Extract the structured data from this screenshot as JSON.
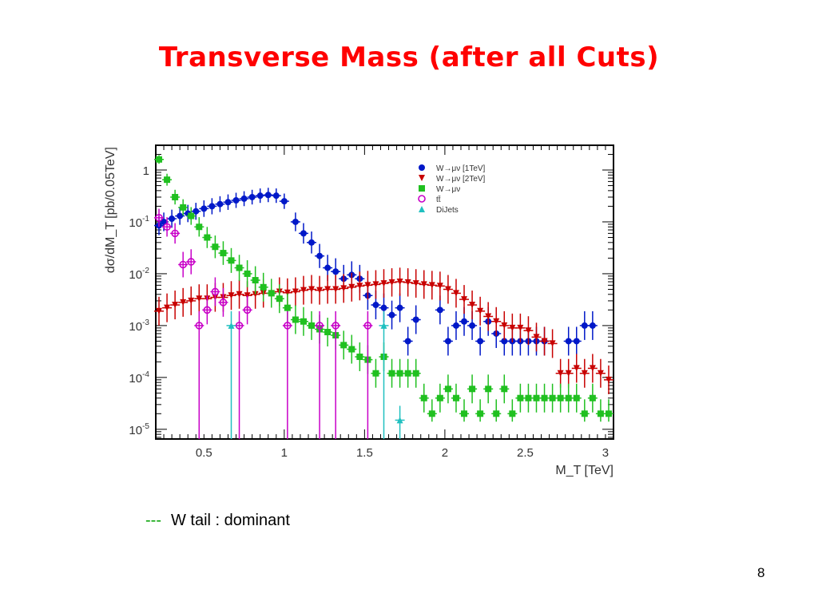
{
  "slide": {
    "title": "Transverse Mass (after all Cuts)",
    "note_dash": "---",
    "note_text": "W tail : dominant",
    "page_number": "8"
  },
  "chart_data": {
    "type": "scatter",
    "xlabel": "M_T [TeV]",
    "ylabel": "dσ/dM_T [pb/0.05TeV]",
    "xlim": [
      0.2,
      3.05
    ],
    "ylim": [
      6.5e-06,
      3
    ],
    "yscale": "log",
    "x_ticks": [
      0.5,
      1,
      1.5,
      2,
      2.5,
      3
    ],
    "x_tick_labels": [
      "0.5",
      "1",
      "1.5",
      "2",
      "2.5",
      "3"
    ],
    "y_ticks": [
      1e-05,
      0.0001,
      0.001,
      0.01,
      0.1,
      1
    ],
    "y_tick_labels": [
      {
        "base": "10",
        "exp": "-5"
      },
      {
        "base": "10",
        "exp": "-4"
      },
      {
        "base": "10",
        "exp": "-3"
      },
      {
        "base": "10",
        "exp": "-2"
      },
      {
        "base": "10",
        "exp": "-1"
      },
      {
        "base": "1",
        "exp": ""
      }
    ],
    "legend_position": "top-right",
    "series": [
      {
        "name": "W→μν [1TeV]",
        "color": "#0018c8",
        "marker": "circle",
        "points": [
          [
            0.22,
            0.085
          ],
          [
            0.25,
            0.1
          ],
          [
            0.3,
            0.115
          ],
          [
            0.35,
            0.13
          ],
          [
            0.4,
            0.145
          ],
          [
            0.45,
            0.16
          ],
          [
            0.5,
            0.18
          ],
          [
            0.55,
            0.2
          ],
          [
            0.6,
            0.22
          ],
          [
            0.65,
            0.24
          ],
          [
            0.7,
            0.26
          ],
          [
            0.75,
            0.28
          ],
          [
            0.8,
            0.3
          ],
          [
            0.85,
            0.32
          ],
          [
            0.9,
            0.33
          ],
          [
            0.95,
            0.32
          ],
          [
            1.0,
            0.25
          ],
          [
            1.07,
            0.1
          ],
          [
            1.12,
            0.06
          ],
          [
            1.17,
            0.04
          ],
          [
            1.22,
            0.022
          ],
          [
            1.27,
            0.013
          ],
          [
            1.32,
            0.011
          ],
          [
            1.37,
            0.008
          ],
          [
            1.42,
            0.0095
          ],
          [
            1.47,
            0.008
          ],
          [
            1.52,
            0.0038
          ],
          [
            1.57,
            0.0025
          ],
          [
            1.62,
            0.0022
          ],
          [
            1.67,
            0.0016
          ],
          [
            1.72,
            0.0022
          ],
          [
            1.77,
            0.0005
          ],
          [
            1.82,
            0.0013
          ],
          [
            1.97,
            0.002
          ],
          [
            2.02,
            0.0005
          ],
          [
            2.07,
            0.001
          ],
          [
            2.12,
            0.0012
          ],
          [
            2.17,
            0.001
          ],
          [
            2.22,
            0.0005
          ],
          [
            2.27,
            0.0012
          ],
          [
            2.32,
            0.0007
          ],
          [
            2.37,
            0.0005
          ],
          [
            2.42,
            0.0005
          ],
          [
            2.47,
            0.0005
          ],
          [
            2.52,
            0.0005
          ],
          [
            2.57,
            0.0005
          ],
          [
            2.62,
            0.0005
          ],
          [
            2.77,
            0.0005
          ],
          [
            2.82,
            0.0005
          ],
          [
            2.87,
            0.001
          ],
          [
            2.92,
            0.001
          ]
        ]
      },
      {
        "name": "W→μν [2TeV]",
        "color": "#c80000",
        "marker": "triangle-down",
        "points": [
          [
            0.22,
            0.0019
          ],
          [
            0.27,
            0.0022
          ],
          [
            0.32,
            0.0025
          ],
          [
            0.37,
            0.0028
          ],
          [
            0.42,
            0.003
          ],
          [
            0.47,
            0.0033
          ],
          [
            0.52,
            0.0033
          ],
          [
            0.57,
            0.0035
          ],
          [
            0.62,
            0.0035
          ],
          [
            0.67,
            0.0038
          ],
          [
            0.72,
            0.004
          ],
          [
            0.77,
            0.0038
          ],
          [
            0.82,
            0.004
          ],
          [
            0.87,
            0.0042
          ],
          [
            0.92,
            0.0042
          ],
          [
            0.97,
            0.0045
          ],
          [
            1.02,
            0.0043
          ],
          [
            1.07,
            0.0045
          ],
          [
            1.12,
            0.0048
          ],
          [
            1.17,
            0.005
          ],
          [
            1.22,
            0.0048
          ],
          [
            1.27,
            0.005
          ],
          [
            1.32,
            0.005
          ],
          [
            1.37,
            0.0052
          ],
          [
            1.42,
            0.0055
          ],
          [
            1.47,
            0.0058
          ],
          [
            1.52,
            0.006
          ],
          [
            1.57,
            0.0062
          ],
          [
            1.62,
            0.0065
          ],
          [
            1.67,
            0.0068
          ],
          [
            1.72,
            0.007
          ],
          [
            1.77,
            0.0068
          ],
          [
            1.82,
            0.0065
          ],
          [
            1.87,
            0.0062
          ],
          [
            1.92,
            0.006
          ],
          [
            1.97,
            0.0058
          ],
          [
            2.02,
            0.005
          ],
          [
            2.07,
            0.0042
          ],
          [
            2.12,
            0.0032
          ],
          [
            2.17,
            0.0025
          ],
          [
            2.22,
            0.0019
          ],
          [
            2.27,
            0.0015
          ],
          [
            2.32,
            0.0012
          ],
          [
            2.37,
            0.001
          ],
          [
            2.42,
            0.0009
          ],
          [
            2.47,
            0.0009
          ],
          [
            2.52,
            0.0008
          ],
          [
            2.57,
            0.0006
          ],
          [
            2.62,
            0.0005
          ],
          [
            2.67,
            0.00045
          ],
          [
            2.72,
            0.00012
          ],
          [
            2.77,
            0.00012
          ],
          [
            2.82,
            0.00015
          ],
          [
            2.87,
            0.00012
          ],
          [
            2.92,
            0.00015
          ],
          [
            2.97,
            0.00012
          ],
          [
            3.02,
            9e-05
          ]
        ]
      },
      {
        "name": "W→μν",
        "color": "#20c020",
        "marker": "square",
        "points": [
          [
            0.22,
            1.6
          ],
          [
            0.27,
            0.65
          ],
          [
            0.32,
            0.3
          ],
          [
            0.37,
            0.19
          ],
          [
            0.42,
            0.13
          ],
          [
            0.47,
            0.08
          ],
          [
            0.52,
            0.05
          ],
          [
            0.57,
            0.033
          ],
          [
            0.62,
            0.025
          ],
          [
            0.67,
            0.018
          ],
          [
            0.72,
            0.013
          ],
          [
            0.77,
            0.01
          ],
          [
            0.82,
            0.0075
          ],
          [
            0.87,
            0.0055
          ],
          [
            0.92,
            0.0042
          ],
          [
            0.97,
            0.0033
          ],
          [
            1.02,
            0.0022
          ],
          [
            1.07,
            0.0013
          ],
          [
            1.12,
            0.0012
          ],
          [
            1.17,
            0.001
          ],
          [
            1.22,
            0.00085
          ],
          [
            1.27,
            0.00075
          ],
          [
            1.32,
            0.00065
          ],
          [
            1.37,
            0.00042
          ],
          [
            1.42,
            0.00035
          ],
          [
            1.47,
            0.00025
          ],
          [
            1.52,
            0.00022
          ],
          [
            1.57,
            0.00012
          ],
          [
            1.62,
            0.00025
          ],
          [
            1.67,
            0.00012
          ],
          [
            1.72,
            0.00012
          ],
          [
            1.77,
            0.00012
          ],
          [
            1.82,
            0.00012
          ],
          [
            1.87,
            4e-05
          ],
          [
            1.92,
            2e-05
          ],
          [
            1.97,
            4e-05
          ],
          [
            2.02,
            6e-05
          ],
          [
            2.07,
            4e-05
          ],
          [
            2.12,
            2e-05
          ],
          [
            2.17,
            6e-05
          ],
          [
            2.22,
            2e-05
          ],
          [
            2.27,
            6e-05
          ],
          [
            2.32,
            2e-05
          ],
          [
            2.37,
            6e-05
          ],
          [
            2.42,
            2e-05
          ],
          [
            2.47,
            4e-05
          ],
          [
            2.52,
            4e-05
          ],
          [
            2.57,
            4e-05
          ],
          [
            2.62,
            4e-05
          ],
          [
            2.67,
            4e-05
          ],
          [
            2.72,
            4e-05
          ],
          [
            2.77,
            4e-05
          ],
          [
            2.82,
            4e-05
          ],
          [
            2.87,
            2e-05
          ],
          [
            2.92,
            4e-05
          ],
          [
            2.97,
            2e-05
          ],
          [
            3.02,
            2e-05
          ]
        ]
      },
      {
        "name": "tt̄",
        "color": "#c800c8",
        "marker": "open-circle",
        "points": [
          [
            0.22,
            0.12
          ],
          [
            0.27,
            0.08
          ],
          [
            0.32,
            0.06
          ],
          [
            0.37,
            0.015
          ],
          [
            0.42,
            0.017
          ],
          [
            0.47,
            0.001
          ],
          [
            0.52,
            0.002
          ],
          [
            0.57,
            0.0045
          ],
          [
            0.62,
            0.0028
          ],
          [
            0.72,
            0.001
          ],
          [
            0.77,
            0.002
          ],
          [
            1.02,
            0.001
          ],
          [
            1.22,
            0.001
          ],
          [
            1.32,
            0.001
          ],
          [
            1.52,
            0.001
          ]
        ]
      },
      {
        "name": "DiJets",
        "color": "#20c0c0",
        "marker": "triangle",
        "points": [
          [
            0.67,
            0.001
          ],
          [
            1.62,
            0.001
          ],
          [
            1.72,
            1.5e-05
          ]
        ]
      }
    ]
  }
}
